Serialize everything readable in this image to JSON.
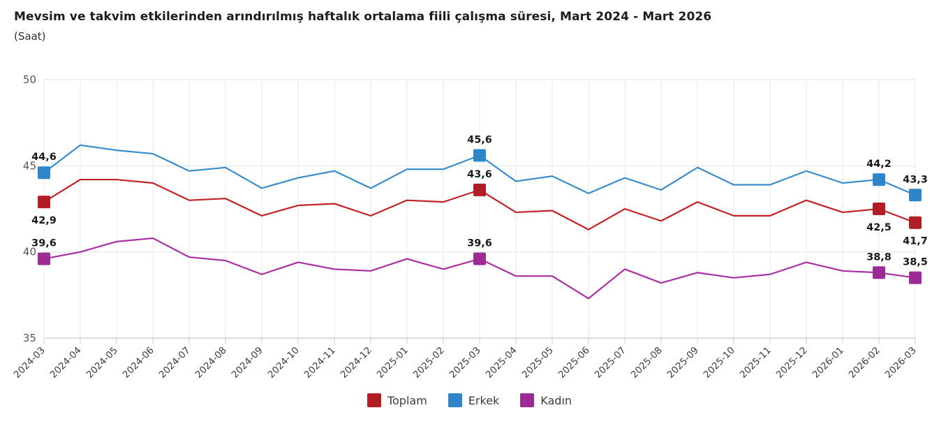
{
  "header": {
    "title": "Mevsim ve takvim etkilerinden arındırılmış haftalık ortalama fiili çalışma süresi, Mart 2024 - Mart 2026",
    "subtitle": "(Saat)"
  },
  "chart_data": {
    "type": "line",
    "title": "Mevsim ve takvim etkilerinden arındırılmış haftalık ortalama fiili çalışma süresi, Mart 2024 - Mart 2026",
    "subtitle": "(Saat)",
    "x": [
      "2024-03",
      "2024-04",
      "2024-05",
      "2024-06",
      "2024-07",
      "2024-08",
      "2024-09",
      "2024-10",
      "2024-11",
      "2024-12",
      "2025-01",
      "2025-02",
      "2025-03",
      "2025-04",
      "2025-05",
      "2025-06",
      "2025-07",
      "2025-08",
      "2025-09",
      "2025-10",
      "2025-11",
      "2025-12",
      "2026-01",
      "2026-02",
      "2026-03"
    ],
    "series": [
      {
        "name": "Toplam",
        "color": "#c22127",
        "marker_color": "#b01e24",
        "values": [
          42.9,
          44.2,
          44.2,
          44.0,
          43.0,
          43.1,
          42.1,
          42.7,
          42.8,
          42.1,
          43.0,
          42.9,
          43.6,
          42.3,
          42.4,
          41.3,
          42.5,
          41.8,
          42.9,
          42.1,
          42.1,
          43.0,
          42.3,
          42.5,
          41.7
        ]
      },
      {
        "name": "Erkek",
        "color": "#3a8ccb",
        "marker_color": "#2e86c8",
        "values": [
          44.6,
          46.2,
          45.9,
          45.7,
          44.7,
          44.9,
          43.7,
          44.3,
          44.7,
          43.7,
          44.8,
          44.8,
          45.6,
          44.1,
          44.4,
          43.4,
          44.3,
          43.6,
          44.9,
          43.9,
          43.9,
          44.7,
          44.0,
          44.2,
          43.3
        ]
      },
      {
        "name": "Kadın",
        "color": "#aa2fa3",
        "marker_color": "#9c2b96",
        "values": [
          39.6,
          40.0,
          40.6,
          40.8,
          39.7,
          39.5,
          38.7,
          39.4,
          39.0,
          38.9,
          39.6,
          39.0,
          39.6,
          38.6,
          38.6,
          37.3,
          39.0,
          38.2,
          38.8,
          38.5,
          38.7,
          39.4,
          38.9,
          38.8,
          38.5
        ]
      }
    ],
    "ylim": [
      35,
      50
    ],
    "yticks": [
      35,
      40,
      45,
      50
    ],
    "grid": true,
    "legend_position": "bottom",
    "decimal_separator": ",",
    "marker_months": [
      "2024-03",
      "2025-03",
      "2026-02",
      "2026-03"
    ],
    "point_labels": [
      {
        "series": "Erkek",
        "month": "2024-03",
        "label": "44,6",
        "position": "above"
      },
      {
        "series": "Toplam",
        "month": "2024-03",
        "label": "42,9",
        "position": "below"
      },
      {
        "series": "Kadın",
        "month": "2024-03",
        "label": "39,6",
        "position": "above"
      },
      {
        "series": "Erkek",
        "month": "2025-03",
        "label": "45,6",
        "position": "above"
      },
      {
        "series": "Toplam",
        "month": "2025-03",
        "label": "43,6",
        "position": "above"
      },
      {
        "series": "Kadın",
        "month": "2025-03",
        "label": "39,6",
        "position": "above"
      },
      {
        "series": "Erkek",
        "month": "2026-02",
        "label": "44,2",
        "position": "above"
      },
      {
        "series": "Toplam",
        "month": "2026-02",
        "label": "42,5",
        "position": "below"
      },
      {
        "series": "Kadın",
        "month": "2026-02",
        "label": "38,8",
        "position": "above"
      },
      {
        "series": "Erkek",
        "month": "2026-03",
        "label": "43,3",
        "position": "above"
      },
      {
        "series": "Toplam",
        "month": "2026-03",
        "label": "41,7",
        "position": "below"
      },
      {
        "series": "Kadın",
        "month": "2026-03",
        "label": "38,5",
        "position": "above"
      }
    ]
  },
  "legend": {
    "items": [
      {
        "label": "Toplam"
      },
      {
        "label": "Erkek"
      },
      {
        "label": "Kadın"
      }
    ]
  }
}
